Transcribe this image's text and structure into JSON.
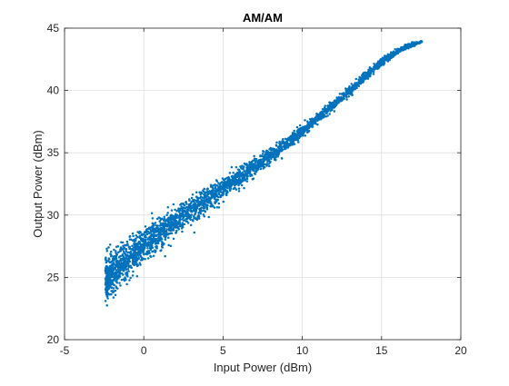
{
  "chart_data": {
    "type": "scatter",
    "title": "AM/AM",
    "xlabel": "Input Power (dBm)",
    "ylabel": "Output Power (dBm)",
    "xlim": [
      -5,
      20
    ],
    "ylim": [
      20,
      45
    ],
    "xticks": [
      -5,
      0,
      5,
      10,
      15,
      20
    ],
    "xtick_labels": [
      "-5",
      "0",
      "5",
      "10",
      "15",
      "20"
    ],
    "yticks": [
      20,
      25,
      30,
      35,
      40,
      45
    ],
    "ytick_labels": [
      "20",
      "25",
      "30",
      "35",
      "40",
      "45"
    ],
    "grid": true,
    "marker_color": "#0072BD",
    "series": [
      {
        "trend": [
          [
            -2.4,
            24.8
          ],
          [
            -1.5,
            26.0
          ],
          [
            0.0,
            27.6
          ],
          [
            2.5,
            30.0
          ],
          [
            5.0,
            32.1
          ],
          [
            7.5,
            34.3
          ],
          [
            10.0,
            36.7
          ],
          [
            12.5,
            39.4
          ],
          [
            15.0,
            42.3
          ],
          [
            16.5,
            43.5
          ],
          [
            17.5,
            43.9
          ]
        ],
        "spread": [
          [
            -2.4,
            1.7
          ],
          [
            0.0,
            1.3
          ],
          [
            5.0,
            0.8
          ],
          [
            10.0,
            0.45
          ],
          [
            15.0,
            0.3
          ],
          [
            17.5,
            0.1
          ]
        ]
      }
    ]
  }
}
